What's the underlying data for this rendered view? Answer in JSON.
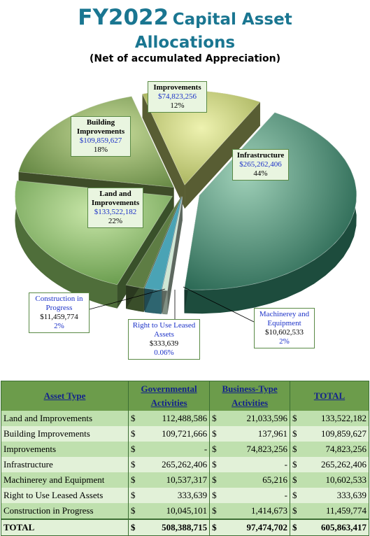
{
  "title": {
    "line1_a": "FY2022",
    "line1_b": "Capital Asset",
    "line2": "Allocations",
    "subtitle": "(Net of accumulated Appreciation)"
  },
  "chart_data": {
    "type": "pie",
    "title": "FY2022 Capital Asset Allocations",
    "subtitle": "(Net of accumulated Appreciation)",
    "slices": [
      {
        "name": "Infrastructure",
        "value": 265262406,
        "value_label": "$265,262,406",
        "percent_label": "44%",
        "color": "#2f7a63"
      },
      {
        "name": "Right to Use Leased Assets",
        "value": 333639,
        "value_label": "$333,639",
        "percent_label": "0.06%",
        "color": "#cfe7d4"
      },
      {
        "name": "Machinerey and Equipment",
        "value": 10602533,
        "value_label": "$10,602,533",
        "percent_label": "2%",
        "color": "#4aa3b5"
      },
      {
        "name": "Construction in Progress",
        "value": 11459774,
        "value_label": "$11,459,774",
        "percent_label": "2%",
        "color": "#5e7d44"
      },
      {
        "name": "Land and Improvements",
        "value": 133522182,
        "value_label": "$133,522,182",
        "percent_label": "22%",
        "color": "#7fb25e"
      },
      {
        "name": "Building Improvements",
        "value": 109859627,
        "value_label": "$109,859,627",
        "percent_label": "18%",
        "color": "#8aac58"
      },
      {
        "name": "Improvements",
        "value": 74823256,
        "value_label": "$74,823,256",
        "percent_label": "12%",
        "color": "#c4cf72"
      }
    ]
  },
  "table": {
    "headers": {
      "asset": "Asset Type",
      "gov": "Governmental Activities",
      "bus": "Business-Type Activities",
      "total": "TOTAL"
    },
    "rows": [
      {
        "name": "Land and Improvements",
        "gov": "112,488,586",
        "bus": "21,033,596",
        "total": "133,522,182"
      },
      {
        "name": "Building Improvements",
        "gov": "109,721,666",
        "bus": "137,961",
        "total": "109,859,627"
      },
      {
        "name": "Improvements",
        "gov": "-",
        "bus": "74,823,256",
        "total": "74,823,256"
      },
      {
        "name": "Infrastructure",
        "gov": "265,262,406",
        "bus": "-",
        "total": "265,262,406"
      },
      {
        "name": "Machinerey and Equipment",
        "gov": "10,537,317",
        "bus": "65,216",
        "total": "10,602,533"
      },
      {
        "name": "Right to Use Leased Assets",
        "gov": "333,639",
        "bus": "-",
        "total": "333,639"
      },
      {
        "name": "Construction in Progress",
        "gov": "10,045,101",
        "bus": "1,414,673",
        "total": "11,459,774"
      }
    ],
    "total_row": {
      "name": "TOTAL",
      "gov": "508,388,715",
      "bus": "97,474,702",
      "total": "605,863,417"
    },
    "currency": "$"
  }
}
